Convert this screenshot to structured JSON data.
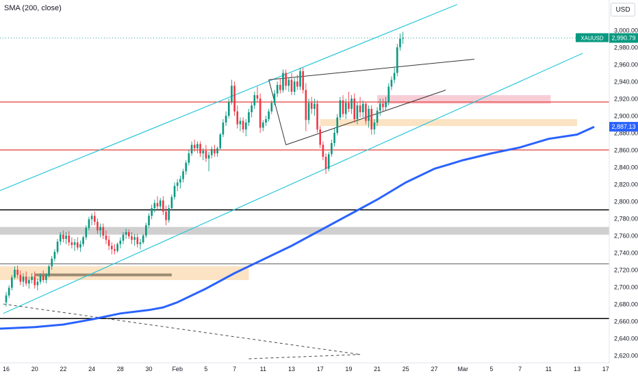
{
  "header": {
    "indicator": "SMA (200, close)",
    "currency": "USD"
  },
  "chart_data": {
    "type": "candlestick",
    "symbol": "XAUUSD",
    "last_price_label": "2,990.79",
    "last_price": 2990.79,
    "sma_label": "2,887.13",
    "sma_value": 2887.13,
    "y_ticks": [
      "3,000.00",
      "2,980.000",
      "2,960.000",
      "2,940.000",
      "2,920.000",
      "2,900.000",
      "2,880.000",
      "2,860.000",
      "2,840.000",
      "2,820.000",
      "2,800.000",
      "2,780.000",
      "2,760.000",
      "2,740.000",
      "2,720.000",
      "2,700.000",
      "2,680.000",
      "2,660.000",
      "2,640.000",
      "2,620.000"
    ],
    "y_values": [
      3000,
      2980,
      2960,
      2940,
      2920,
      2900,
      2880,
      2860,
      2840,
      2820,
      2800,
      2780,
      2760,
      2740,
      2720,
      2700,
      2680,
      2660,
      2640,
      2620
    ],
    "x_ticks": [
      {
        "label": "16",
        "i": 0
      },
      {
        "label": "20",
        "i": 10
      },
      {
        "label": "22",
        "i": 20
      },
      {
        "label": "24",
        "i": 30
      },
      {
        "label": "28",
        "i": 40
      },
      {
        "label": "30",
        "i": 50
      },
      {
        "label": "Feb",
        "i": 60
      },
      {
        "label": "5",
        "i": 70
      },
      {
        "label": "7",
        "i": 80
      },
      {
        "label": "11",
        "i": 90
      },
      {
        "label": "13",
        "i": 100
      },
      {
        "label": "17",
        "i": 110
      },
      {
        "label": "19",
        "i": 120
      },
      {
        "label": "21",
        "i": 130
      },
      {
        "label": "25",
        "i": 140
      },
      {
        "label": "27",
        "i": 150
      },
      {
        "label": "Mar",
        "i": 160
      },
      {
        "label": "5",
        "i": 170
      },
      {
        "label": "7",
        "i": 180
      },
      {
        "label": "11",
        "i": 190
      },
      {
        "label": "13",
        "i": 200
      },
      {
        "label": "17",
        "i": 210
      }
    ],
    "sma_path": [
      [
        -4,
        2651
      ],
      [
        10,
        2653
      ],
      [
        20,
        2656
      ],
      [
        30,
        2662
      ],
      [
        40,
        2669
      ],
      [
        50,
        2673
      ],
      [
        55,
        2676
      ],
      [
        60,
        2682
      ],
      [
        70,
        2698
      ],
      [
        80,
        2716
      ],
      [
        90,
        2732
      ],
      [
        100,
        2748
      ],
      [
        110,
        2766
      ],
      [
        120,
        2784
      ],
      [
        130,
        2802
      ],
      [
        140,
        2822
      ],
      [
        150,
        2838
      ],
      [
        155,
        2843
      ],
      [
        160,
        2848
      ],
      [
        170,
        2856
      ],
      [
        180,
        2863
      ],
      [
        190,
        2873
      ],
      [
        200,
        2878
      ],
      [
        206,
        2887
      ]
    ],
    "key_price": [
      {
        "from": 130,
        "to": 150,
        "y": 2920
      },
      {
        "from": 110,
        "to": 200,
        "y": 2892
      },
      {
        "from": -4,
        "to": 85,
        "y": 2716
      },
      {
        "from": 10,
        "to": 58,
        "y": 2714
      },
      {
        "from": -4,
        "to": 210,
        "y": 2790
      },
      {
        "from": -4,
        "to": 210,
        "y": 2765
      },
      {
        "from": -4,
        "to": 210,
        "y": 2727
      },
      {
        "from": -4,
        "to": 210,
        "y": 2663
      },
      {
        "from": -4,
        "to": 210,
        "y": 2916
      },
      {
        "from": -4,
        "to": 210,
        "y": 2860
      }
    ],
    "trend_path": [
      [
        [
          -4,
          2810
        ],
        [
          158,
          3030
        ]
      ],
      [
        [
          -1,
          2669
        ],
        [
          202,
          2973
        ]
      ],
      [
        [
          92,
          2942
        ],
        [
          164,
          2966
        ]
      ],
      [
        [
          98,
          2866
        ],
        [
          154,
          2930
        ]
      ],
      [
        [
          -1,
          2680
        ],
        [
          124,
          2621
        ]
      ],
      [
        [
          85,
          2616
        ],
        [
          124,
          2621
        ]
      ]
    ],
    "candles": [
      {
        "o": 2682,
        "h": 2694,
        "l": 2677,
        "c": 2690
      },
      {
        "o": 2690,
        "h": 2702,
        "l": 2687,
        "c": 2699
      },
      {
        "o": 2699,
        "h": 2714,
        "l": 2696,
        "c": 2711
      },
      {
        "o": 2711,
        "h": 2724,
        "l": 2709,
        "c": 2720
      },
      {
        "o": 2720,
        "h": 2725,
        "l": 2710,
        "c": 2714
      },
      {
        "o": 2714,
        "h": 2719,
        "l": 2702,
        "c": 2706
      },
      {
        "o": 2706,
        "h": 2716,
        "l": 2700,
        "c": 2712
      },
      {
        "o": 2712,
        "h": 2718,
        "l": 2701,
        "c": 2704
      },
      {
        "o": 2704,
        "h": 2712,
        "l": 2698,
        "c": 2708
      },
      {
        "o": 2708,
        "h": 2716,
        "l": 2704,
        "c": 2712
      },
      {
        "o": 2712,
        "h": 2718,
        "l": 2698,
        "c": 2702
      },
      {
        "o": 2702,
        "h": 2710,
        "l": 2696,
        "c": 2706
      },
      {
        "o": 2706,
        "h": 2716,
        "l": 2703,
        "c": 2713
      },
      {
        "o": 2713,
        "h": 2719,
        "l": 2705,
        "c": 2708
      },
      {
        "o": 2708,
        "h": 2716,
        "l": 2704,
        "c": 2714
      },
      {
        "o": 2714,
        "h": 2726,
        "l": 2711,
        "c": 2724
      },
      {
        "o": 2724,
        "h": 2736,
        "l": 2720,
        "c": 2733
      },
      {
        "o": 2733,
        "h": 2744,
        "l": 2730,
        "c": 2741
      },
      {
        "o": 2741,
        "h": 2756,
        "l": 2738,
        "c": 2753
      },
      {
        "o": 2753,
        "h": 2764,
        "l": 2749,
        "c": 2761
      },
      {
        "o": 2761,
        "h": 2766,
        "l": 2752,
        "c": 2756
      },
      {
        "o": 2756,
        "h": 2764,
        "l": 2750,
        "c": 2760
      },
      {
        "o": 2760,
        "h": 2765,
        "l": 2748,
        "c": 2752
      },
      {
        "o": 2752,
        "h": 2758,
        "l": 2745,
        "c": 2749
      },
      {
        "o": 2749,
        "h": 2756,
        "l": 2742,
        "c": 2752
      },
      {
        "o": 2752,
        "h": 2758,
        "l": 2743,
        "c": 2746
      },
      {
        "o": 2746,
        "h": 2754,
        "l": 2741,
        "c": 2750
      },
      {
        "o": 2750,
        "h": 2760,
        "l": 2747,
        "c": 2758
      },
      {
        "o": 2758,
        "h": 2772,
        "l": 2755,
        "c": 2769
      },
      {
        "o": 2769,
        "h": 2782,
        "l": 2766,
        "c": 2779
      },
      {
        "o": 2779,
        "h": 2786,
        "l": 2772,
        "c": 2783
      },
      {
        "o": 2783,
        "h": 2788,
        "l": 2772,
        "c": 2776
      },
      {
        "o": 2776,
        "h": 2780,
        "l": 2762,
        "c": 2766
      },
      {
        "o": 2766,
        "h": 2774,
        "l": 2758,
        "c": 2770
      },
      {
        "o": 2770,
        "h": 2774,
        "l": 2756,
        "c": 2760
      },
      {
        "o": 2760,
        "h": 2766,
        "l": 2750,
        "c": 2755
      },
      {
        "o": 2755,
        "h": 2760,
        "l": 2743,
        "c": 2748
      },
      {
        "o": 2748,
        "h": 2752,
        "l": 2738,
        "c": 2744
      },
      {
        "o": 2744,
        "h": 2750,
        "l": 2738,
        "c": 2742
      },
      {
        "o": 2742,
        "h": 2752,
        "l": 2740,
        "c": 2750
      },
      {
        "o": 2750,
        "h": 2758,
        "l": 2745,
        "c": 2754
      },
      {
        "o": 2754,
        "h": 2764,
        "l": 2750,
        "c": 2761
      },
      {
        "o": 2761,
        "h": 2768,
        "l": 2756,
        "c": 2764
      },
      {
        "o": 2764,
        "h": 2767,
        "l": 2756,
        "c": 2759
      },
      {
        "o": 2759,
        "h": 2764,
        "l": 2750,
        "c": 2755
      },
      {
        "o": 2755,
        "h": 2762,
        "l": 2748,
        "c": 2758
      },
      {
        "o": 2758,
        "h": 2762,
        "l": 2746,
        "c": 2750
      },
      {
        "o": 2750,
        "h": 2756,
        "l": 2744,
        "c": 2752
      },
      {
        "o": 2752,
        "h": 2762,
        "l": 2750,
        "c": 2760
      },
      {
        "o": 2760,
        "h": 2775,
        "l": 2757,
        "c": 2772
      },
      {
        "o": 2772,
        "h": 2786,
        "l": 2769,
        "c": 2783
      },
      {
        "o": 2783,
        "h": 2796,
        "l": 2779,
        "c": 2792
      },
      {
        "o": 2792,
        "h": 2802,
        "l": 2787,
        "c": 2798
      },
      {
        "o": 2798,
        "h": 2806,
        "l": 2790,
        "c": 2794
      },
      {
        "o": 2794,
        "h": 2804,
        "l": 2790,
        "c": 2801
      },
      {
        "o": 2801,
        "h": 2806,
        "l": 2784,
        "c": 2788
      },
      {
        "o": 2788,
        "h": 2795,
        "l": 2772,
        "c": 2778
      },
      {
        "o": 2778,
        "h": 2796,
        "l": 2775,
        "c": 2792
      },
      {
        "o": 2792,
        "h": 2808,
        "l": 2789,
        "c": 2805
      },
      {
        "o": 2805,
        "h": 2822,
        "l": 2802,
        "c": 2818
      },
      {
        "o": 2818,
        "h": 2826,
        "l": 2812,
        "c": 2822
      },
      {
        "o": 2822,
        "h": 2830,
        "l": 2815,
        "c": 2826
      },
      {
        "o": 2826,
        "h": 2838,
        "l": 2822,
        "c": 2835
      },
      {
        "o": 2835,
        "h": 2848,
        "l": 2831,
        "c": 2845
      },
      {
        "o": 2845,
        "h": 2860,
        "l": 2842,
        "c": 2856
      },
      {
        "o": 2856,
        "h": 2870,
        "l": 2853,
        "c": 2866
      },
      {
        "o": 2866,
        "h": 2872,
        "l": 2858,
        "c": 2862
      },
      {
        "o": 2862,
        "h": 2870,
        "l": 2856,
        "c": 2867
      },
      {
        "o": 2867,
        "h": 2870,
        "l": 2852,
        "c": 2856
      },
      {
        "o": 2856,
        "h": 2862,
        "l": 2848,
        "c": 2859
      },
      {
        "o": 2859,
        "h": 2866,
        "l": 2846,
        "c": 2850
      },
      {
        "o": 2850,
        "h": 2858,
        "l": 2835,
        "c": 2854
      },
      {
        "o": 2854,
        "h": 2864,
        "l": 2850,
        "c": 2861
      },
      {
        "o": 2861,
        "h": 2866,
        "l": 2852,
        "c": 2856
      },
      {
        "o": 2856,
        "h": 2864,
        "l": 2852,
        "c": 2862
      },
      {
        "o": 2862,
        "h": 2880,
        "l": 2860,
        "c": 2878
      },
      {
        "o": 2878,
        "h": 2896,
        "l": 2875,
        "c": 2892
      },
      {
        "o": 2892,
        "h": 2905,
        "l": 2888,
        "c": 2900
      },
      {
        "o": 2900,
        "h": 2920,
        "l": 2897,
        "c": 2916
      },
      {
        "o": 2916,
        "h": 2942,
        "l": 2913,
        "c": 2935
      },
      {
        "o": 2935,
        "h": 2940,
        "l": 2900,
        "c": 2905
      },
      {
        "o": 2905,
        "h": 2912,
        "l": 2885,
        "c": 2890
      },
      {
        "o": 2890,
        "h": 2898,
        "l": 2882,
        "c": 2894
      },
      {
        "o": 2894,
        "h": 2898,
        "l": 2880,
        "c": 2884
      },
      {
        "o": 2884,
        "h": 2896,
        "l": 2876,
        "c": 2892
      },
      {
        "o": 2892,
        "h": 2908,
        "l": 2888,
        "c": 2904
      },
      {
        "o": 2904,
        "h": 2916,
        "l": 2898,
        "c": 2912
      },
      {
        "o": 2912,
        "h": 2928,
        "l": 2908,
        "c": 2924
      },
      {
        "o": 2924,
        "h": 2934,
        "l": 2916,
        "c": 2920
      },
      {
        "o": 2920,
        "h": 2926,
        "l": 2880,
        "c": 2886
      },
      {
        "o": 2886,
        "h": 2895,
        "l": 2882,
        "c": 2892
      },
      {
        "o": 2892,
        "h": 2900,
        "l": 2888,
        "c": 2896
      },
      {
        "o": 2896,
        "h": 2908,
        "l": 2893,
        "c": 2905
      },
      {
        "o": 2905,
        "h": 2918,
        "l": 2902,
        "c": 2915
      },
      {
        "o": 2915,
        "h": 2930,
        "l": 2912,
        "c": 2926
      },
      {
        "o": 2926,
        "h": 2940,
        "l": 2922,
        "c": 2936
      },
      {
        "o": 2936,
        "h": 2944,
        "l": 2926,
        "c": 2930
      },
      {
        "o": 2930,
        "h": 2954,
        "l": 2927,
        "c": 2950
      },
      {
        "o": 2950,
        "h": 2954,
        "l": 2930,
        "c": 2935
      },
      {
        "o": 2935,
        "h": 2945,
        "l": 2928,
        "c": 2942
      },
      {
        "o": 2942,
        "h": 2950,
        "l": 2924,
        "c": 2928
      },
      {
        "o": 2928,
        "h": 2944,
        "l": 2924,
        "c": 2940
      },
      {
        "o": 2940,
        "h": 2948,
        "l": 2930,
        "c": 2934
      },
      {
        "o": 2934,
        "h": 2956,
        "l": 2930,
        "c": 2952
      },
      {
        "o": 2952,
        "h": 2956,
        "l": 2926,
        "c": 2930
      },
      {
        "o": 2930,
        "h": 2938,
        "l": 2882,
        "c": 2895
      },
      {
        "o": 2895,
        "h": 2920,
        "l": 2890,
        "c": 2915
      },
      {
        "o": 2915,
        "h": 2922,
        "l": 2902,
        "c": 2908
      },
      {
        "o": 2908,
        "h": 2920,
        "l": 2900,
        "c": 2914
      },
      {
        "o": 2914,
        "h": 2918,
        "l": 2880,
        "c": 2884
      },
      {
        "o": 2884,
        "h": 2888,
        "l": 2862,
        "c": 2866
      },
      {
        "o": 2866,
        "h": 2870,
        "l": 2848,
        "c": 2852
      },
      {
        "o": 2852,
        "h": 2856,
        "l": 2832,
        "c": 2838
      },
      {
        "o": 2838,
        "h": 2858,
        "l": 2835,
        "c": 2855
      },
      {
        "o": 2855,
        "h": 2872,
        "l": 2852,
        "c": 2868
      },
      {
        "o": 2868,
        "h": 2885,
        "l": 2864,
        "c": 2880
      },
      {
        "o": 2880,
        "h": 2902,
        "l": 2877,
        "c": 2898
      },
      {
        "o": 2898,
        "h": 2922,
        "l": 2895,
        "c": 2918
      },
      {
        "o": 2918,
        "h": 2924,
        "l": 2898,
        "c": 2902
      },
      {
        "o": 2902,
        "h": 2920,
        "l": 2896,
        "c": 2915
      },
      {
        "o": 2915,
        "h": 2928,
        "l": 2904,
        "c": 2908
      },
      {
        "o": 2908,
        "h": 2924,
        "l": 2902,
        "c": 2920
      },
      {
        "o": 2920,
        "h": 2926,
        "l": 2892,
        "c": 2896
      },
      {
        "o": 2896,
        "h": 2916,
        "l": 2890,
        "c": 2912
      },
      {
        "o": 2912,
        "h": 2922,
        "l": 2898,
        "c": 2904
      },
      {
        "o": 2904,
        "h": 2918,
        "l": 2898,
        "c": 2914
      },
      {
        "o": 2914,
        "h": 2916,
        "l": 2890,
        "c": 2894
      },
      {
        "o": 2894,
        "h": 2912,
        "l": 2886,
        "c": 2908
      },
      {
        "o": 2908,
        "h": 2912,
        "l": 2878,
        "c": 2884
      },
      {
        "o": 2884,
        "h": 2896,
        "l": 2878,
        "c": 2892
      },
      {
        "o": 2892,
        "h": 2910,
        "l": 2888,
        "c": 2906
      },
      {
        "o": 2906,
        "h": 2920,
        "l": 2900,
        "c": 2914
      },
      {
        "o": 2914,
        "h": 2920,
        "l": 2905,
        "c": 2910
      },
      {
        "o": 2910,
        "h": 2922,
        "l": 2906,
        "c": 2916
      },
      {
        "o": 2916,
        "h": 2938,
        "l": 2912,
        "c": 2934
      },
      {
        "o": 2934,
        "h": 2946,
        "l": 2930,
        "c": 2942
      },
      {
        "o": 2942,
        "h": 2956,
        "l": 2938,
        "c": 2950
      },
      {
        "o": 2950,
        "h": 2984,
        "l": 2946,
        "c": 2980
      },
      {
        "o": 2980,
        "h": 2996,
        "l": 2976,
        "c": 2990
      },
      {
        "o": 2990,
        "h": 2998,
        "l": 2984,
        "c": 2991
      }
    ]
  }
}
